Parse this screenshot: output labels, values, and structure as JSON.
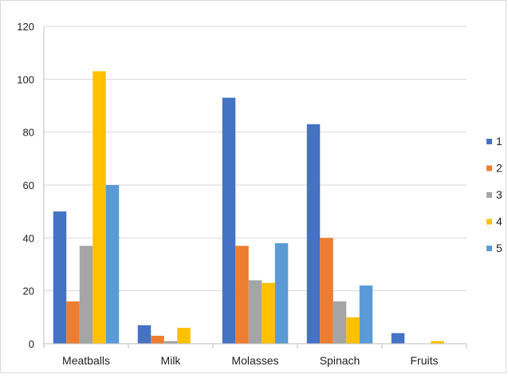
{
  "chart_data": {
    "type": "bar",
    "title": "",
    "xlabel": "",
    "ylabel": "",
    "ylim": [
      0,
      120
    ],
    "yticks": [
      0,
      20,
      40,
      60,
      80,
      100,
      120
    ],
    "grid": "horizontal",
    "legend_position": "right",
    "categories": [
      "Meatballs",
      "Milk",
      "Molasses",
      "Spinach",
      "Fruits"
    ],
    "series": [
      {
        "name": "1",
        "color": "#4472C4",
        "values": [
          50,
          7,
          93,
          83,
          4
        ]
      },
      {
        "name": "2",
        "color": "#ED7D31",
        "values": [
          16,
          3,
          37,
          40,
          0
        ]
      },
      {
        "name": "3",
        "color": "#A5A5A5",
        "values": [
          37,
          1,
          24,
          16,
          0
        ]
      },
      {
        "name": "4",
        "color": "#FFC000",
        "values": [
          103,
          6,
          23,
          10,
          1
        ]
      },
      {
        "name": "5",
        "color": "#5B9BD5",
        "values": [
          60,
          0,
          38,
          22,
          0
        ]
      }
    ]
  }
}
